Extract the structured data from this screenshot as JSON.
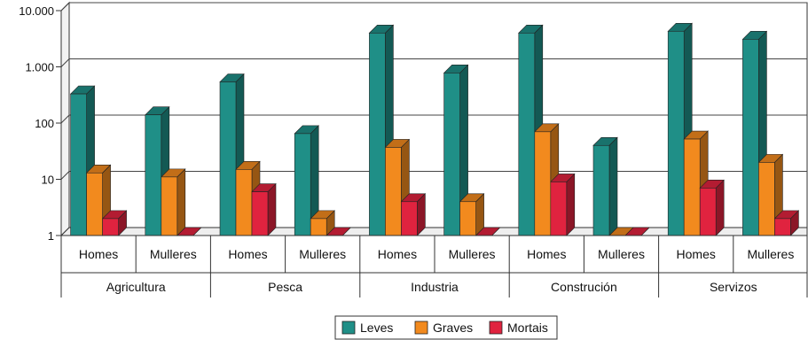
{
  "chart_data": {
    "type": "bar",
    "y_scale": "log",
    "ylim": [
      1,
      10000
    ],
    "y_ticks": [
      {
        "value": 1,
        "label": "1"
      },
      {
        "value": 10,
        "label": "10"
      },
      {
        "value": 100,
        "label": "100"
      },
      {
        "value": 1000,
        "label": "1.000"
      },
      {
        "value": 10000,
        "label": "10.000"
      }
    ],
    "grid": true,
    "legend_position": "bottom",
    "bar_style": "3d",
    "groups": [
      {
        "sector": "Agricultura",
        "categories": [
          "Homes",
          "Mulleres"
        ]
      },
      {
        "sector": "Pesca",
        "categories": [
          "Homes",
          "Mulleres"
        ]
      },
      {
        "sector": "Industria",
        "categories": [
          "Homes",
          "Mulleres"
        ]
      },
      {
        "sector": "Construción",
        "categories": [
          "Homes",
          "Mulleres"
        ]
      },
      {
        "sector": "Servizos",
        "categories": [
          "Homes",
          "Mulleres"
        ]
      }
    ],
    "series": [
      {
        "name": "Leves",
        "color": "#1f8f87",
        "values": [
          330,
          140,
          540,
          65,
          4000,
          780,
          4000,
          40,
          4300,
          3100
        ]
      },
      {
        "name": "Graves",
        "color": "#f28a1e",
        "values": [
          13,
          11,
          15,
          2,
          37,
          4,
          70,
          1,
          52,
          20
        ]
      },
      {
        "name": "Mortais",
        "color": "#e0233f",
        "values": [
          2,
          1,
          6,
          1,
          4,
          1,
          9,
          1,
          7,
          2
        ]
      }
    ]
  }
}
